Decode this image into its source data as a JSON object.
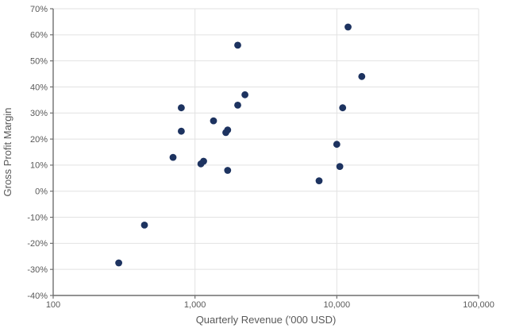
{
  "chart_data": {
    "type": "scatter",
    "title": "",
    "xlabel": "Quarterly Revenue ('000 USD)",
    "ylabel": "Gross Profit Margin",
    "x_scale": "log",
    "xlim": [
      100,
      100000
    ],
    "ylim": [
      -40,
      70
    ],
    "grid": true,
    "legend": "none",
    "x_ticks": [
      100,
      1000,
      10000,
      100000
    ],
    "x_tick_labels": [
      "100",
      "1,000",
      "10,000",
      "100,000"
    ],
    "y_ticks": [
      70,
      60,
      50,
      40,
      30,
      20,
      10,
      0,
      -10,
      -20,
      -30,
      -40
    ],
    "y_tick_labels": [
      "70%",
      "60%",
      "50%",
      "40%",
      "30%",
      "20%",
      "10%",
      "0%",
      "-10%",
      "-20%",
      "-30%",
      "-40%"
    ],
    "points": [
      {
        "x": 2000,
        "y": 56
      },
      {
        "x": 12000,
        "y": 63
      },
      {
        "x": 15000,
        "y": 44
      },
      {
        "x": 2250,
        "y": 37
      },
      {
        "x": 2000,
        "y": 33
      },
      {
        "x": 11000,
        "y": 32
      },
      {
        "x": 800,
        "y": 32
      },
      {
        "x": 1350,
        "y": 27
      },
      {
        "x": 800,
        "y": 23
      },
      {
        "x": 1700,
        "y": 23.5
      },
      {
        "x": 1650,
        "y": 22.5
      },
      {
        "x": 10000,
        "y": 18
      },
      {
        "x": 700,
        "y": 13
      },
      {
        "x": 1150,
        "y": 11.5
      },
      {
        "x": 1100,
        "y": 10.5
      },
      {
        "x": 1700,
        "y": 8
      },
      {
        "x": 10500,
        "y": 9.5
      },
      {
        "x": 7500,
        "y": 4
      },
      {
        "x": 440,
        "y": -13
      },
      {
        "x": 290,
        "y": -27.5
      }
    ]
  },
  "colors": {
    "marker": "#1d3360",
    "axis_line": "#6f6f6f",
    "gridline": "#e2e2e2",
    "tick_label": "#595959",
    "axis_title": "#595959",
    "background": "#ffffff"
  }
}
